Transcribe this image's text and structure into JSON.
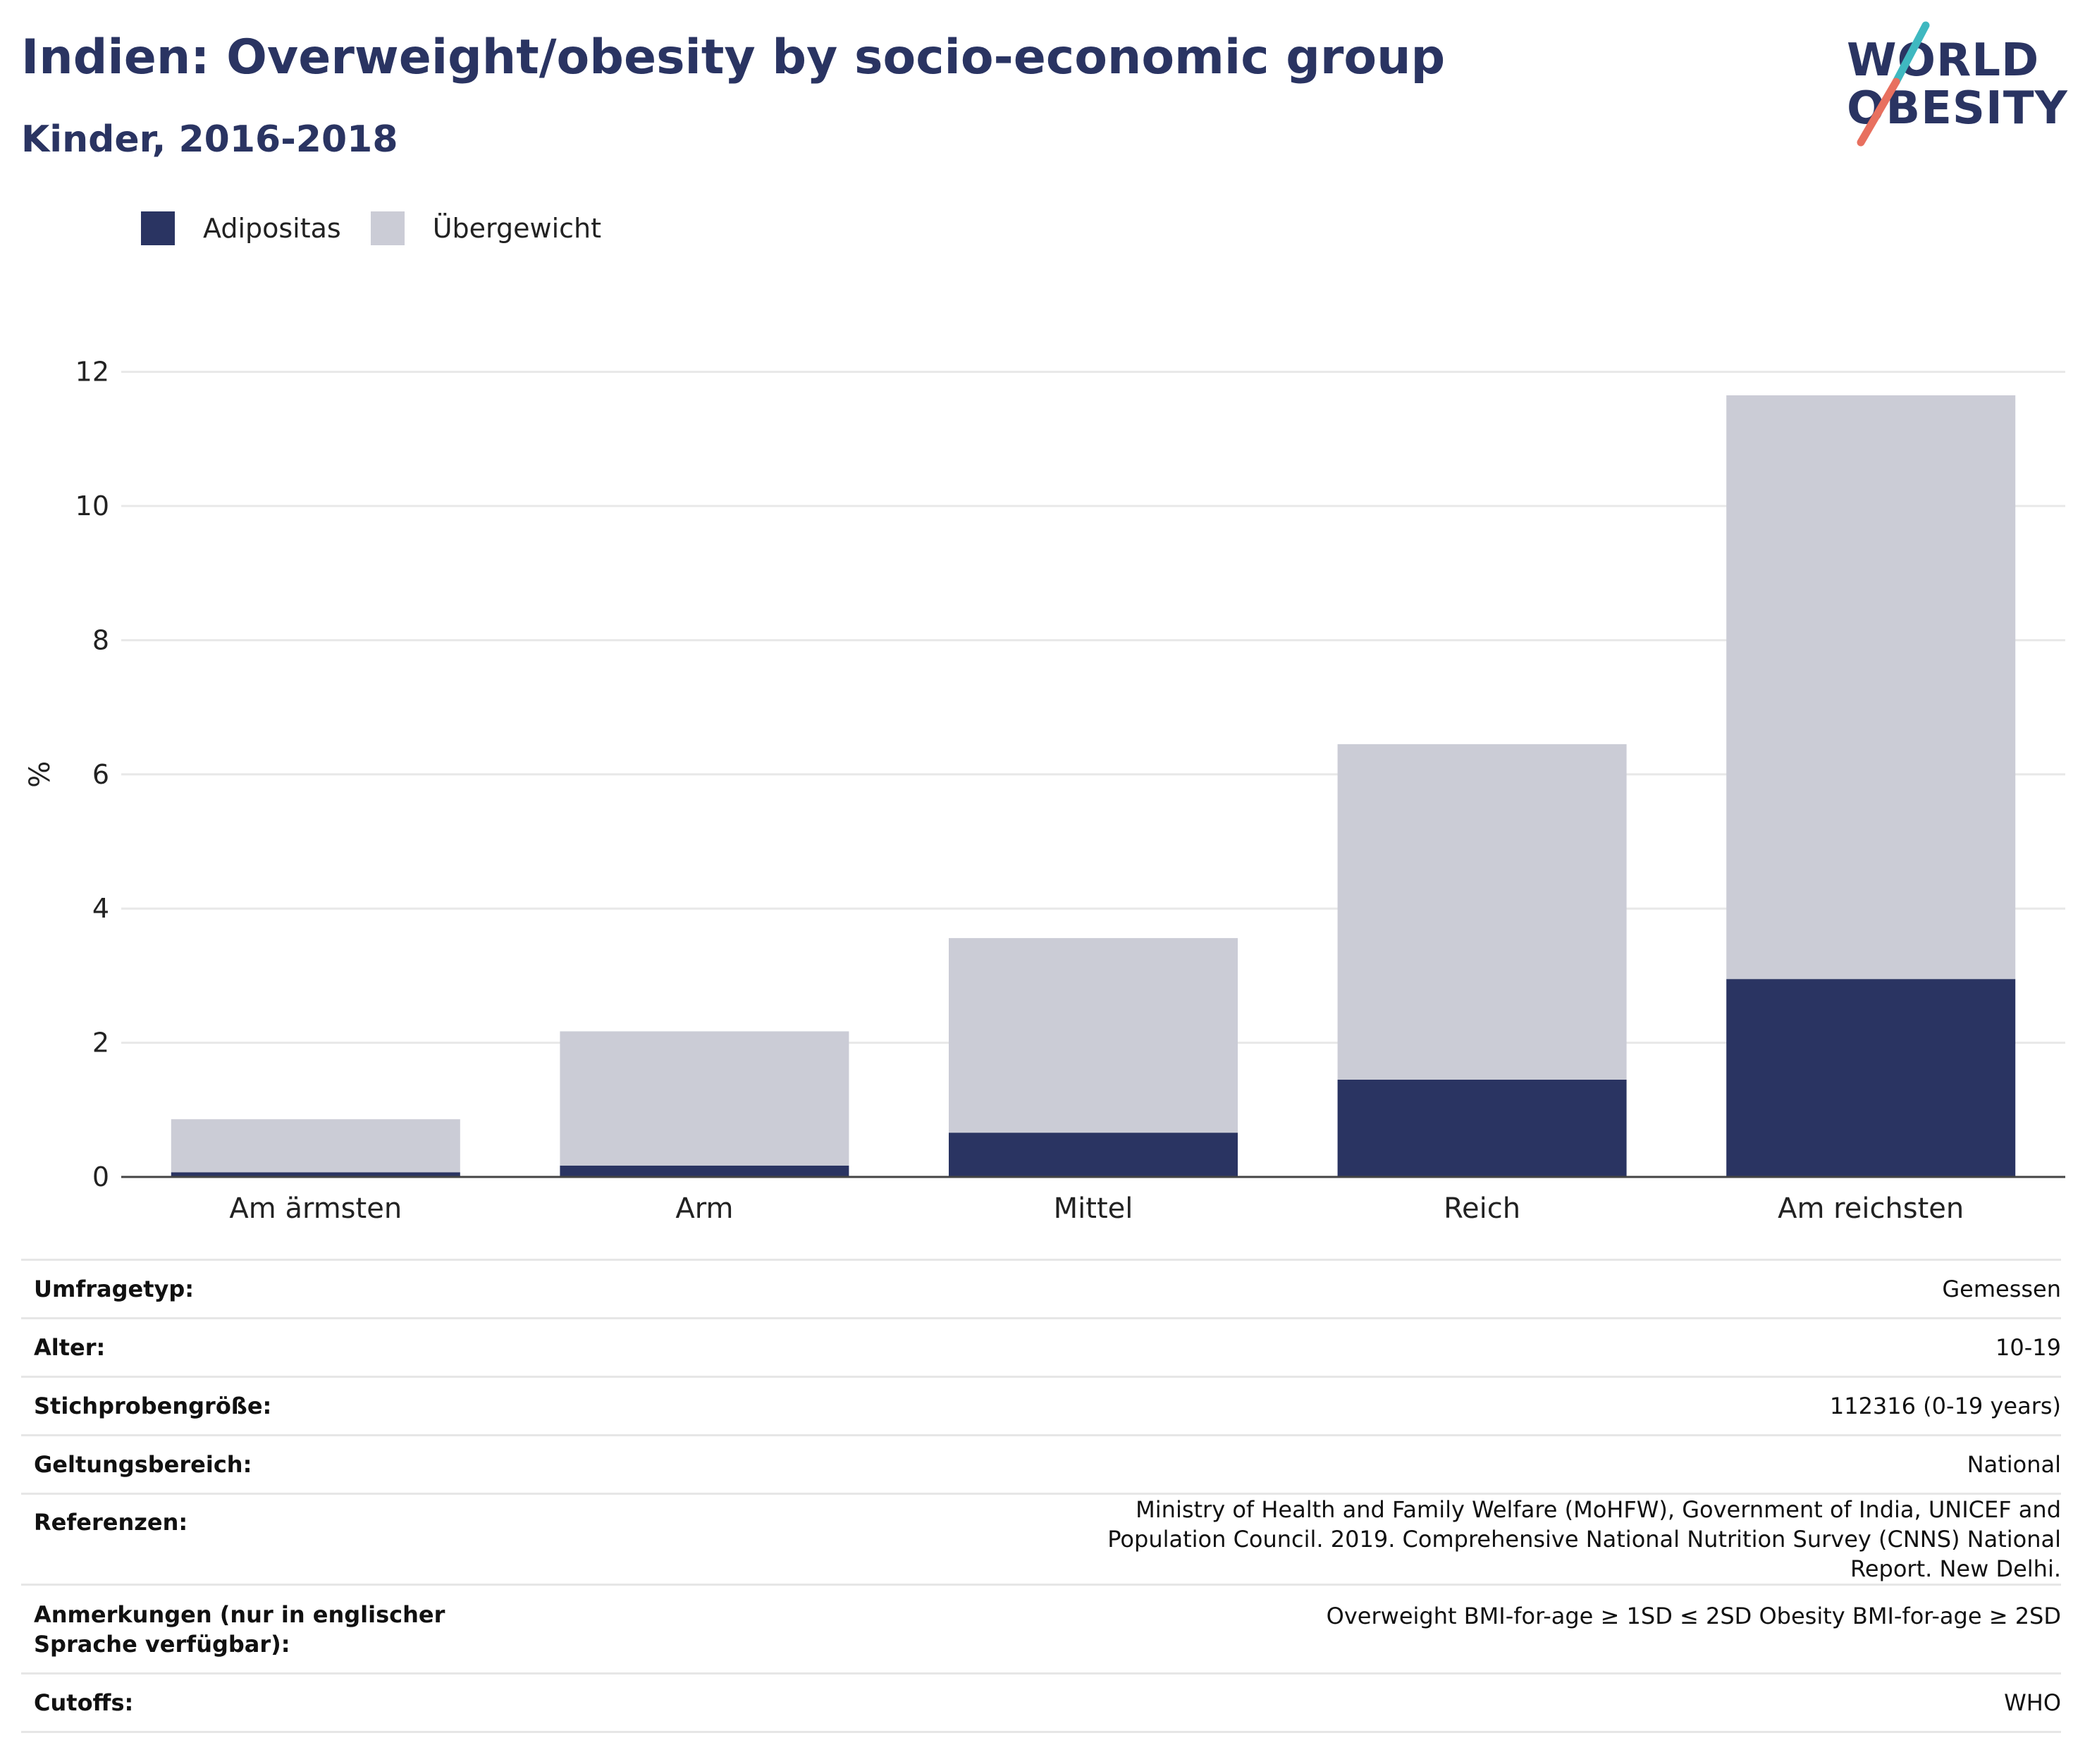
{
  "header": {
    "title": "Indien: Overweight/obesity by socio-economic group",
    "subtitle": "Kinder, 2016-2018"
  },
  "logo": {
    "line1": "WORLD",
    "line2": "OBESITY"
  },
  "colors": {
    "obesity": "#2a3462",
    "overweight": "#cbccd6",
    "title": "#2a3462",
    "accent_teal": "#3fb8c0",
    "accent_coral": "#e8705f"
  },
  "chart_data": {
    "type": "bar",
    "stacked": true,
    "categories": [
      "Am ärmsten",
      "Arm",
      "Mittel",
      "Reich",
      "Am reichsten"
    ],
    "series": [
      {
        "name": "Adipositas",
        "values": [
          0.07,
          0.17,
          0.66,
          1.45,
          2.95
        ]
      },
      {
        "name": "Übergewicht",
        "values": [
          0.79,
          2.0,
          2.9,
          5.0,
          8.7
        ]
      }
    ],
    "ylabel": "%",
    "ylim": [
      0,
      12.6
    ],
    "yticks": [
      0,
      2,
      4,
      6,
      8,
      10,
      12
    ],
    "grid": true,
    "legend": "top-left"
  },
  "meta": [
    {
      "label": "Umfragetyp:",
      "value": "Gemessen"
    },
    {
      "label": "Alter:",
      "value": "10-19"
    },
    {
      "label": "Stichprobengröße:",
      "value": "112316 (0-19 years)"
    },
    {
      "label": "Geltungsbereich:",
      "value": "National"
    },
    {
      "label": "Referenzen:",
      "value": "Ministry of Health and Family Welfare (MoHFW), Government of India, UNICEF and Population Council. 2019. Comprehensive National Nutrition Survey (CNNS) National Report. New Delhi."
    },
    {
      "label": "Anmerkungen (nur in englischer Sprache verfügbar):",
      "value": "Overweight BMI-for-age ≥ 1SD ≤ 2SD Obesity BMI-for-age ≥ 2SD"
    },
    {
      "label": "Cutoffs:",
      "value": "WHO"
    }
  ]
}
